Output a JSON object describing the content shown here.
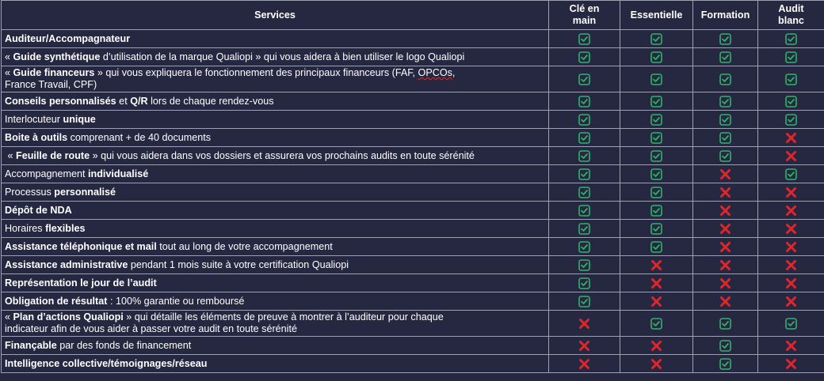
{
  "table": {
    "headers": [
      "Services",
      "Clé en\nmain",
      "Essentielle",
      "Formation",
      "Audit\nblanc"
    ],
    "rows": [
      {
        "service": [
          {
            "t": "Auditeur/Accompagnateur",
            "b": true
          }
        ],
        "marks": [
          "check",
          "check",
          "check",
          "check"
        ]
      },
      {
        "service": [
          {
            "t": "« "
          },
          {
            "t": "Guide synthétique",
            "b": true
          },
          {
            "t": " d’utilisation de la marque Qualiopi » qui vous aidera à bien utiliser le logo Qualiopi"
          }
        ],
        "marks": [
          "check",
          "check",
          "check",
          "check"
        ]
      },
      {
        "service": [
          {
            "t": "« "
          },
          {
            "t": "Guide financeurs",
            "b": true
          },
          {
            "t": " » qui vous expliquera le fonctionnement des principaux financeurs (FAF, "
          },
          {
            "t": "OPCOs",
            "spell": true
          },
          {
            "t": ",\nFrance Travail, CPF)"
          }
        ],
        "marks": [
          "check",
          "check",
          "check",
          "check"
        ],
        "tall": true
      },
      {
        "service": [
          {
            "t": "Conseils personnalisés",
            "b": true
          },
          {
            "t": " et "
          },
          {
            "t": "Q/R",
            "b": true
          },
          {
            "t": " lors de chaque rendez-vous"
          }
        ],
        "marks": [
          "check",
          "check",
          "check",
          "check"
        ]
      },
      {
        "service": [
          {
            "t": "Interlocuteur "
          },
          {
            "t": "unique",
            "b": true
          }
        ],
        "marks": [
          "check",
          "check",
          "check",
          "check"
        ]
      },
      {
        "service": [
          {
            "t": "Boite à outils",
            "b": true
          },
          {
            "t": " comprenant + de 40 documents"
          }
        ],
        "marks": [
          "check",
          "check",
          "check",
          "cross"
        ]
      },
      {
        "service": [
          {
            "t": " « "
          },
          {
            "t": "Feuille de route",
            "b": true
          },
          {
            "t": " » qui vous aidera dans vos dossiers et assurera vos prochains audits en toute sérénité"
          }
        ],
        "marks": [
          "check",
          "check",
          "check",
          "cross"
        ]
      },
      {
        "service": [
          {
            "t": "Accompagnement "
          },
          {
            "t": "individualisé",
            "b": true
          }
        ],
        "marks": [
          "check",
          "check",
          "cross",
          "check"
        ]
      },
      {
        "service": [
          {
            "t": "Processus "
          },
          {
            "t": "personnalisé",
            "b": true
          }
        ],
        "marks": [
          "check",
          "check",
          "cross",
          "cross"
        ]
      },
      {
        "service": [
          {
            "t": "Dépôt de NDA",
            "b": true
          }
        ],
        "marks": [
          "check",
          "check",
          "cross",
          "cross"
        ]
      },
      {
        "service": [
          {
            "t": "Horaires "
          },
          {
            "t": "flexibles",
            "b": true
          }
        ],
        "marks": [
          "check",
          "check",
          "cross",
          "cross"
        ]
      },
      {
        "service": [
          {
            "t": "Assistance téléphonique et mail",
            "b": true
          },
          {
            "t": " tout au long de votre accompagnement"
          }
        ],
        "marks": [
          "check",
          "check",
          "cross",
          "cross"
        ]
      },
      {
        "service": [
          {
            "t": "Assistance administrative",
            "b": true
          },
          {
            "t": " pendant 1 mois suite à votre certification Qualiopi"
          }
        ],
        "marks": [
          "check",
          "cross",
          "cross",
          "cross"
        ]
      },
      {
        "service": [
          {
            "t": "Représentation le jour de l’audit",
            "b": true
          }
        ],
        "marks": [
          "check",
          "cross",
          "cross",
          "cross"
        ]
      },
      {
        "service": [
          {
            "t": "Obligation de résultat",
            "b": true
          },
          {
            "t": " : 100% garantie ou remboursé"
          }
        ],
        "marks": [
          "check",
          "cross",
          "cross",
          "cross"
        ]
      },
      {
        "service": [
          {
            "t": "« "
          },
          {
            "t": "Plan d’actions Qualiopi",
            "b": true
          },
          {
            "t": " » qui détaille les éléments de preuve à montrer à l’auditeur pour chaque\nindicateur afin de vous aider à passer votre audit en toute sérénité"
          }
        ],
        "marks": [
          "cross",
          "check",
          "check",
          "check"
        ],
        "tall": true
      },
      {
        "service": [
          {
            "t": "Finançable",
            "b": true
          },
          {
            "t": " par des fonds de financement"
          }
        ],
        "marks": [
          "cross",
          "cross",
          "check",
          "cross"
        ]
      },
      {
        "service": [
          {
            "t": "Intelligence collective/témoignages/réseau",
            "b": true
          }
        ],
        "marks": [
          "cross",
          "cross",
          "check",
          "cross"
        ]
      }
    ]
  },
  "icons": {
    "check": "check-icon",
    "cross": "cross-icon"
  },
  "colors": {
    "background": "#262740",
    "border": "#9ea0b4",
    "check": "#2fb36a",
    "cross": "#e0262b"
  }
}
